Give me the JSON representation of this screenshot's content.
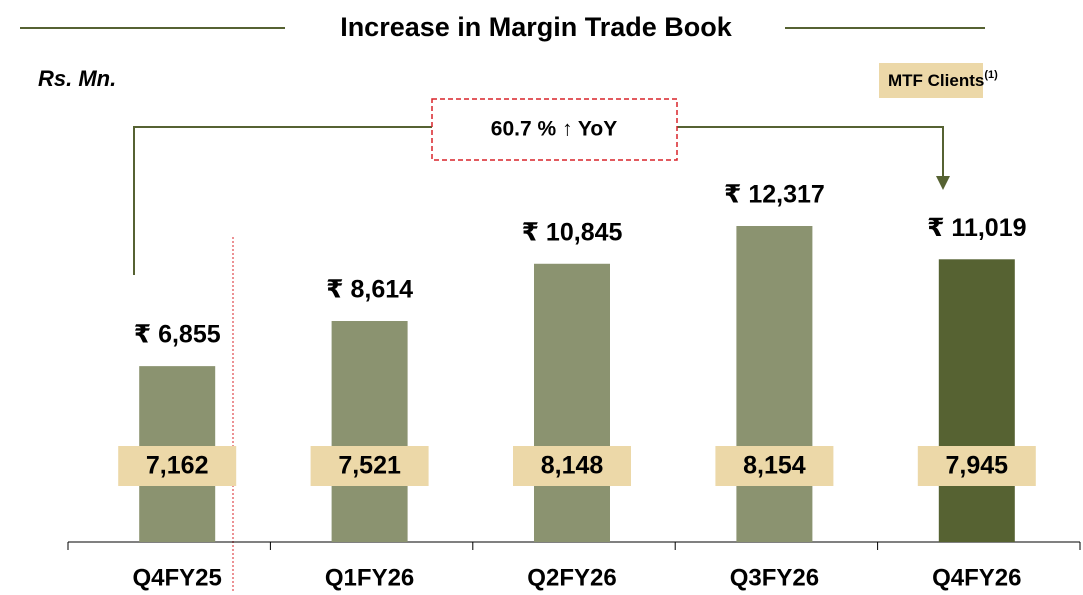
{
  "chart_data": {
    "type": "bar",
    "title": "Increase in Margin Trade Book",
    "unit_label": "Rs. Mn.",
    "annotation": "60.7 % ↑ YoY",
    "categories": [
      "Q4FY25",
      "Q1FY26",
      "Q2FY26",
      "Q3FY26",
      "Q4FY26"
    ],
    "values": [
      6855,
      8614,
      10845,
      12317,
      11019
    ],
    "value_labels": [
      "₹ 6,855",
      "₹ 8,614",
      "₹ 10,845",
      "₹ 12,317",
      "₹ 11,019"
    ],
    "colors": [
      "#8b9370",
      "#8b9370",
      "#8b9370",
      "#8b9370",
      "#566232"
    ],
    "clients": {
      "name": "MTF Clients",
      "footnote": "(1)",
      "color": "#ecd8a8",
      "values": [
        7162,
        7521,
        8148,
        8154,
        7945
      ],
      "value_labels": [
        "7,162",
        "7,521",
        "8,148",
        "8,154",
        "7,945"
      ]
    }
  }
}
